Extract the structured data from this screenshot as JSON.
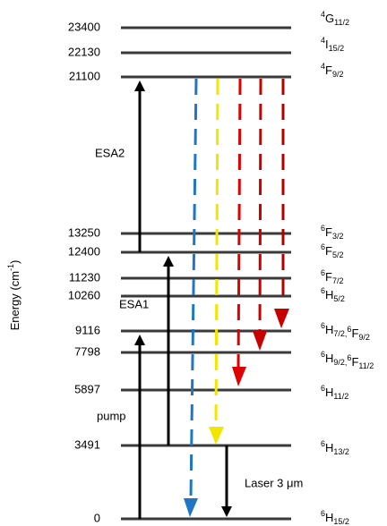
{
  "axis_label": {
    "text": "Energy (cm",
    "sup": "-1",
    "tail": ")"
  },
  "levels": [
    {
      "energy": "23400",
      "term": [
        {
          "sup": "4",
          "letter": "G",
          "sub": "11/2"
        }
      ]
    },
    {
      "energy": "22130",
      "term": [
        {
          "sup": "4",
          "letter": "I",
          "sub": "15/2"
        }
      ]
    },
    {
      "energy": "21100",
      "term": [
        {
          "sup": "4",
          "letter": "F",
          "sub": "9/2"
        }
      ]
    },
    {
      "energy": "13250",
      "term": [
        {
          "sup": "6",
          "letter": "F",
          "sub": "3/2"
        }
      ]
    },
    {
      "energy": "12400",
      "term": [
        {
          "sup": "6",
          "letter": "F",
          "sub": "5/2"
        }
      ]
    },
    {
      "energy": "11230",
      "term": [
        {
          "sup": "6",
          "letter": "F",
          "sub": "7/2"
        }
      ]
    },
    {
      "energy": "10260",
      "term": [
        {
          "sup": "6",
          "letter": "H",
          "sub": "5/2"
        }
      ]
    },
    {
      "energy": "9116",
      "term": [
        {
          "sup": "6",
          "letter": "H",
          "sub": "7/2,"
        },
        {
          "sup": "6",
          "letter": "F",
          "sub": "9/2"
        }
      ]
    },
    {
      "energy": "7798",
      "term": [
        {
          "sup": "6",
          "letter": "H",
          "sub": "9/2,"
        },
        {
          "sup": "6",
          "letter": "F",
          "sub": "11/2"
        }
      ]
    },
    {
      "energy": "5897",
      "term": [
        {
          "sup": "6",
          "letter": "H",
          "sub": "11/2"
        }
      ]
    },
    {
      "energy": "3491",
      "term": [
        {
          "sup": "6",
          "letter": "H",
          "sub": "13/2"
        }
      ]
    },
    {
      "energy": "0",
      "term": [
        {
          "sup": "6",
          "letter": "H",
          "sub": "15/2"
        }
      ]
    }
  ],
  "transitions": {
    "esa2": "ESA2",
    "esa1": "ESA1",
    "pump": "pump",
    "laser": "Laser 3 μm"
  }
}
